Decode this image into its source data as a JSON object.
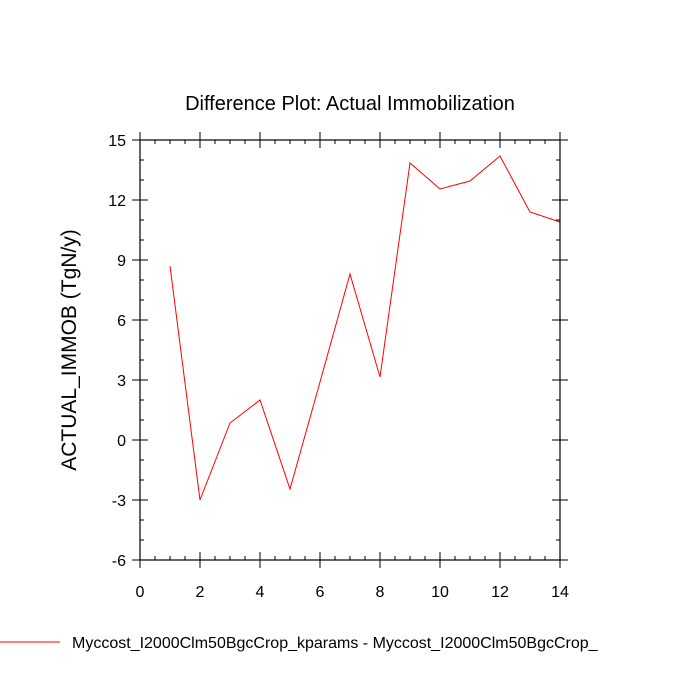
{
  "chart_data": {
    "type": "line",
    "title": "Difference Plot: Actual Immobilization",
    "xlabel": "",
    "ylabel": "ACTUAL_IMMOB  (TgN/y)",
    "xlim": [
      0,
      14
    ],
    "ylim": [
      -6,
      15
    ],
    "x_ticks": [
      0,
      2,
      4,
      6,
      8,
      10,
      12,
      14
    ],
    "y_ticks": [
      -6,
      -3,
      0,
      3,
      6,
      9,
      12,
      15
    ],
    "grid": false,
    "legend_position": "bottom",
    "series": [
      {
        "name": "Myccost_I2000Clm50BgcCrop_kparams - Myccost_I2000Clm50BgcCrop_",
        "color": "#ff0000",
        "x": [
          1,
          2,
          3,
          4,
          5,
          6,
          7,
          8,
          9,
          10,
          11,
          12,
          13,
          14
        ],
        "values": [
          8.7,
          -3.0,
          0.85,
          2.0,
          -2.45,
          2.9,
          8.3,
          3.15,
          13.85,
          12.55,
          12.95,
          14.2,
          11.4,
          10.9
        ]
      }
    ]
  }
}
